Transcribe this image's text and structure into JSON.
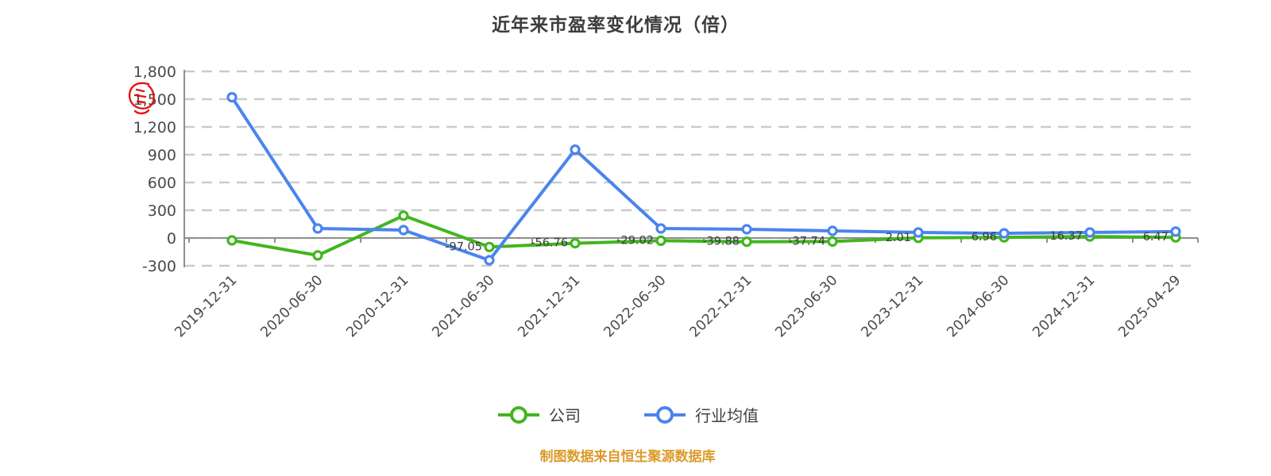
{
  "title": "近年来市盈率变化情况（倍）",
  "footer": "制图数据来自恒生聚源数据库",
  "annotation": {
    "name": "red-scribble-mark-over-1500-label",
    "color": "#e60000"
  },
  "legend": [
    {
      "label": "公司",
      "color": "#41b61e"
    },
    {
      "label": "行业均值",
      "color": "#4b84ed"
    }
  ],
  "colors": {
    "grid": "#cbcbcb",
    "axis": "#8f8f8f",
    "axis_text": "#4a4a4a",
    "data_label_text": "#3c3c3c",
    "company_green": "#41b61e",
    "industry_blue": "#4b84ed",
    "footer_orange": "#dc9a2a",
    "background": "#ffffff"
  },
  "chart_data": {
    "type": "line",
    "title": "近年来市盈率变化情况（倍）",
    "categories": [
      "2019-12-31",
      "2020-06-30",
      "2020-12-31",
      "2021-06-30",
      "2021-12-31",
      "2022-06-30",
      "2022-12-31",
      "2023-06-30",
      "2023-12-31",
      "2024-06-30",
      "2024-12-31",
      "2025-04-29"
    ],
    "series": [
      {
        "name": "公司",
        "color": "#41b61e",
        "values": [
          -26,
          -188,
          241.4,
          -97.05,
          -56.76,
          -29.02,
          -39.88,
          -37.74,
          2.01,
          6.96,
          16.37,
          6.47
        ],
        "labels": [
          "",
          "",
          "",
          "-97.05",
          "-56.76",
          "-29.02",
          "-39.88",
          "-37.74",
          "2.01",
          "6.96",
          "16.37",
          "6.47"
        ]
      },
      {
        "name": "行业均值",
        "color": "#4b84ed",
        "values": [
          1521,
          103,
          86,
          -240,
          955,
          103,
          94,
          77,
          60,
          51,
          60,
          69
        ],
        "labels": [
          "",
          "",
          "",
          "",
          "",
          "",
          "",
          "",
          "",
          "",
          "",
          ""
        ]
      }
    ],
    "y_ticks": [
      "1,800",
      "1,500",
      "1,200",
      "900",
      "600",
      "300",
      "0",
      "-300"
    ],
    "ylim": [
      -300,
      1800
    ],
    "xlabel": "",
    "ylabel": "",
    "grid": "dashed-horizontal",
    "legend_position": "bottom"
  }
}
